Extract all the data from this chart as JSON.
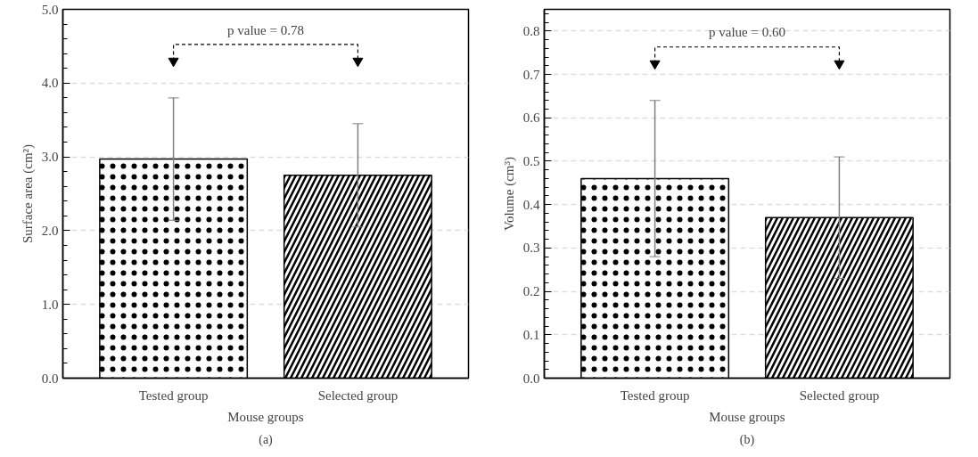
{
  "chart_data": [
    {
      "type": "bar",
      "categories": [
        "Tested group",
        "Selected group"
      ],
      "values": [
        2.97,
        2.75
      ],
      "errors": [
        0.83,
        0.7
      ],
      "color": "#ffffff",
      "xlabel": "Mouse groups",
      "ylabel": "Surface area (cm²)",
      "ylim": [
        0,
        5.0
      ],
      "yticks": [
        {
          "value": 0,
          "label": "0.0"
        },
        {
          "value": 1,
          "label": "1.0"
        },
        {
          "value": 2,
          "label": "2.0"
        },
        {
          "value": 3,
          "label": "3.0"
        },
        {
          "value": 4,
          "label": "4.0"
        },
        {
          "value": 5,
          "label": "5.0"
        }
      ],
      "grid": "y",
      "annotations": [
        "p value = 0.78",
        "(a)"
      ]
    },
    {
      "type": "bar",
      "categories": [
        "Tested group",
        "Selected group"
      ],
      "values": [
        0.46,
        0.37
      ],
      "errors": [
        0.18,
        0.14
      ],
      "color": "#ffffff",
      "xlabel": "Mouse groups",
      "ylabel": "Volume (cm³)",
      "ylim": [
        0,
        0.85
      ],
      "yticks": [
        {
          "value": 0,
          "label": "0.0"
        },
        0.1,
        0.2,
        0.3,
        0.4,
        0.5,
        0.6,
        0.7,
        0.8
      ],
      "grid": "y",
      "annotations": [
        "p value = 0.60",
        "(b)"
      ]
    }
  ]
}
